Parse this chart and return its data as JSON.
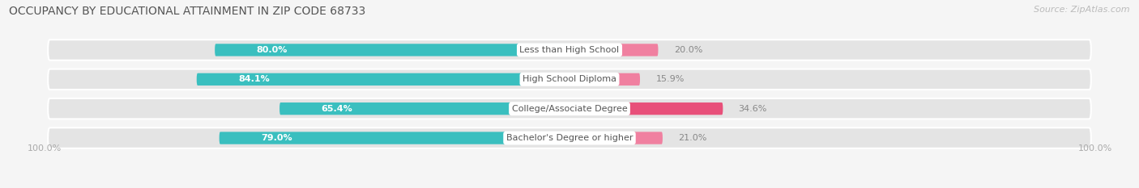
{
  "title": "OCCUPANCY BY EDUCATIONAL ATTAINMENT IN ZIP CODE 68733",
  "source": "Source: ZipAtlas.com",
  "categories": [
    "Less than High School",
    "High School Diploma",
    "College/Associate Degree",
    "Bachelor's Degree or higher"
  ],
  "owner_pct": [
    80.0,
    84.1,
    65.4,
    79.0
  ],
  "renter_pct": [
    20.0,
    15.9,
    34.6,
    21.0
  ],
  "owner_color": "#3abfbf",
  "owner_color_light": "#7dd8d8",
  "renter_color": "#f080a0",
  "renter_color_dark": "#e8507a",
  "bg_color": "#f5f5f5",
  "bar_bg_color": "#e4e4e4",
  "title_fontsize": 10,
  "source_fontsize": 8,
  "bar_label_fontsize": 8,
  "cat_label_fontsize": 8,
  "legend_fontsize": 8,
  "axis_label_fontsize": 8,
  "left_axis_label": "100.0%",
  "right_axis_label": "100.0%"
}
